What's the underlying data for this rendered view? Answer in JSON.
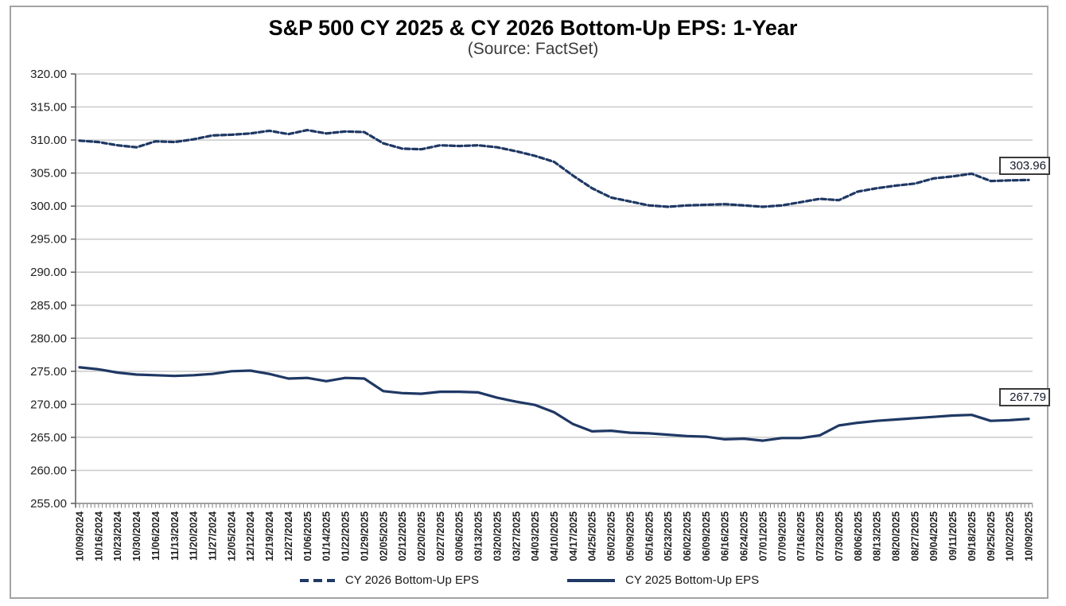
{
  "title": "S&P 500 CY 2025 & CY 2026 Bottom-Up EPS: 1-Year",
  "subtitle": "(Source: FactSet)",
  "end_labels": {
    "cy2026": "303.96",
    "cy2025": "267.79"
  },
  "legend": [
    {
      "label": "CY 2026 Bottom-Up EPS",
      "style": "dashed"
    },
    {
      "label": "CY 2025 Bottom-Up EPS",
      "style": "solid"
    }
  ],
  "colors": {
    "line": "#1F3864",
    "grid": "#C9C9C9",
    "axis": "#808080",
    "spine": "#595959",
    "text": "#1f1f1f",
    "border": "#A3A3A3"
  },
  "chart_data": {
    "type": "line",
    "title": "S&P 500 CY 2025 & CY 2026 Bottom-Up EPS: 1-Year",
    "subtitle": "(Source: FactSet)",
    "xlabel": "",
    "ylabel": "",
    "ylim": [
      255,
      320
    ],
    "ytick_step": 5,
    "y_ticks": [
      "320.00",
      "315.00",
      "310.00",
      "305.00",
      "300.00",
      "295.00",
      "290.00",
      "285.00",
      "280.00",
      "275.00",
      "270.00",
      "265.00",
      "260.00",
      "255.00"
    ],
    "grid": true,
    "legend_position": "bottom",
    "x": [
      "10/09/2024",
      "10/16/2024",
      "10/23/2024",
      "10/30/2024",
      "11/06/2024",
      "11/13/2024",
      "11/20/2024",
      "11/27/2024",
      "12/05/2024",
      "12/12/2024",
      "12/19/2024",
      "12/27/2024",
      "01/06/2025",
      "01/14/2025",
      "01/22/2025",
      "01/29/2025",
      "02/05/2025",
      "02/12/2025",
      "02/20/2025",
      "02/27/2025",
      "03/06/2025",
      "03/13/2025",
      "03/20/2025",
      "03/27/2025",
      "04/03/2025",
      "04/10/2025",
      "04/17/2025",
      "04/25/2025",
      "05/02/2025",
      "05/09/2025",
      "05/16/2025",
      "05/23/2025",
      "06/02/2025",
      "06/09/2025",
      "06/16/2025",
      "06/24/2025",
      "07/01/2025",
      "07/09/2025",
      "07/16/2025",
      "07/23/2025",
      "07/30/2025",
      "08/06/2025",
      "08/13/2025",
      "08/20/2025",
      "08/27/2025",
      "09/04/2025",
      "09/11/2025",
      "09/18/2025",
      "09/25/2025",
      "10/02/2025",
      "10/09/2025"
    ],
    "series": [
      {
        "name": "CY 2026 Bottom-Up EPS",
        "style": "dashed",
        "end_label": "303.96",
        "values": [
          309.9,
          309.7,
          309.2,
          308.9,
          309.8,
          309.7,
          310.1,
          310.7,
          310.8,
          311.0,
          311.4,
          310.9,
          311.5,
          311.0,
          311.3,
          311.2,
          309.5,
          308.7,
          308.6,
          309.2,
          309.1,
          309.2,
          308.9,
          308.3,
          307.6,
          306.7,
          304.6,
          302.7,
          301.3,
          300.7,
          300.1,
          299.9,
          300.1,
          300.2,
          300.3,
          300.1,
          299.9,
          300.1,
          300.6,
          301.1,
          300.9,
          302.2,
          302.7,
          303.1,
          303.4,
          304.2,
          304.5,
          304.9,
          303.8,
          303.9,
          303.96
        ]
      },
      {
        "name": "CY 2025 Bottom-Up EPS",
        "style": "solid",
        "end_label": "267.79",
        "values": [
          275.6,
          275.3,
          274.8,
          274.5,
          274.4,
          274.3,
          274.4,
          274.6,
          275.0,
          275.1,
          274.6,
          273.9,
          274.0,
          273.5,
          274.0,
          273.9,
          272.0,
          271.7,
          271.6,
          271.9,
          271.9,
          271.8,
          271.0,
          270.4,
          269.9,
          268.8,
          267.0,
          265.9,
          266.0,
          265.7,
          265.6,
          265.4,
          265.2,
          265.1,
          264.7,
          264.8,
          264.5,
          264.9,
          264.9,
          265.3,
          266.8,
          267.2,
          267.5,
          267.7,
          267.9,
          268.1,
          268.3,
          268.4,
          267.5,
          267.6,
          267.79
        ]
      }
    ]
  }
}
